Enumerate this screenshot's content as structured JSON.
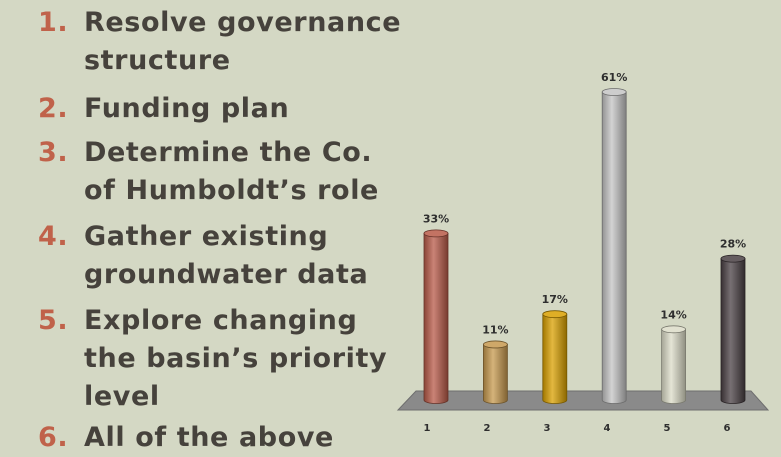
{
  "colors": {
    "background": "#d4d8c4",
    "text": "#46423c",
    "number_accent": "#c0624a",
    "floor": "#8a8a8a"
  },
  "options": [
    {
      "num": "1.",
      "text": "Resolve governance structure"
    },
    {
      "num": "2.",
      "text": "Funding plan"
    },
    {
      "num": "3.",
      "text": "Determine the Co. of Humboldt’s role"
    },
    {
      "num": "4.",
      "text": "Gather existing groundwater data"
    },
    {
      "num": "5.",
      "text": "Explore changing the basin’s priority level"
    },
    {
      "num": "6.",
      "text": "All of the above"
    }
  ],
  "chart_data": {
    "type": "bar",
    "style": "3d-cylinder",
    "categories": [
      "1",
      "2",
      "3",
      "4",
      "5",
      "6"
    ],
    "values": [
      33,
      11,
      17,
      61,
      14,
      28
    ],
    "data_labels": [
      "33%",
      "11%",
      "17%",
      "61%",
      "14%",
      "28%"
    ],
    "bar_colors": [
      "#b85a48",
      "#c7994e",
      "#d9a000",
      "#c4c4c4",
      "#dcdcc8",
      "#4a4044"
    ],
    "ylim": [
      0,
      61
    ],
    "grid": false,
    "legend": "none"
  }
}
